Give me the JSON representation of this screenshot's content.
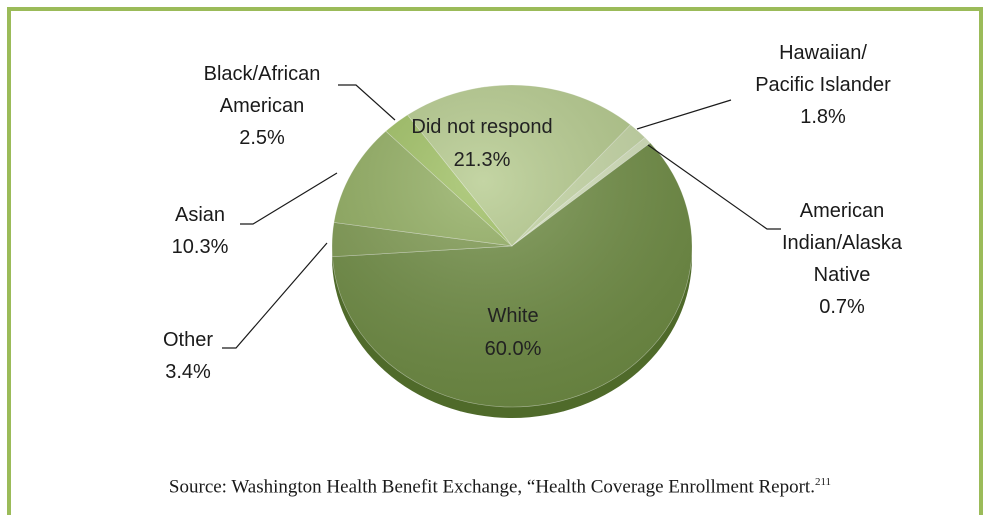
{
  "chart_data": {
    "type": "pie",
    "slices": [
      {
        "label": "Did not respond",
        "value": 21.3,
        "pct_label": "21.3%",
        "color": "#b3c98a"
      },
      {
        "label": "Hawaiian/ Pacific Islander",
        "label_lines": [
          "Hawaiian/",
          "Pacific Islander"
        ],
        "value": 1.8,
        "pct_label": "1.8%",
        "color": "#c4d6a3"
      },
      {
        "label": "American Indian/Alaska Native",
        "label_lines": [
          "American",
          "Indian/Alaska",
          "Native"
        ],
        "value": 0.7,
        "pct_label": "0.7%",
        "color": "#d4e2bb"
      },
      {
        "label": "White",
        "value": 60.0,
        "pct_label": "60.0%",
        "color": "#6e8c42"
      },
      {
        "label": "Other",
        "label_lines": [
          "Other"
        ],
        "value": 3.4,
        "pct_label": "3.4%",
        "color": "#7e9a50"
      },
      {
        "label": "Asian",
        "label_lines": [
          "Asian"
        ],
        "value": 10.3,
        "pct_label": "10.3%",
        "color": "#90ad5e"
      },
      {
        "label": "Black/African American",
        "label_lines": [
          "Black/African",
          "American"
        ],
        "value": 2.5,
        "pct_label": "2.5%",
        "color": "#9dbf5f"
      }
    ]
  },
  "source": {
    "text": "Source: Washington Health Benefit Exchange, “Health Coverage Enrollment Report.",
    "footnote": "211"
  }
}
